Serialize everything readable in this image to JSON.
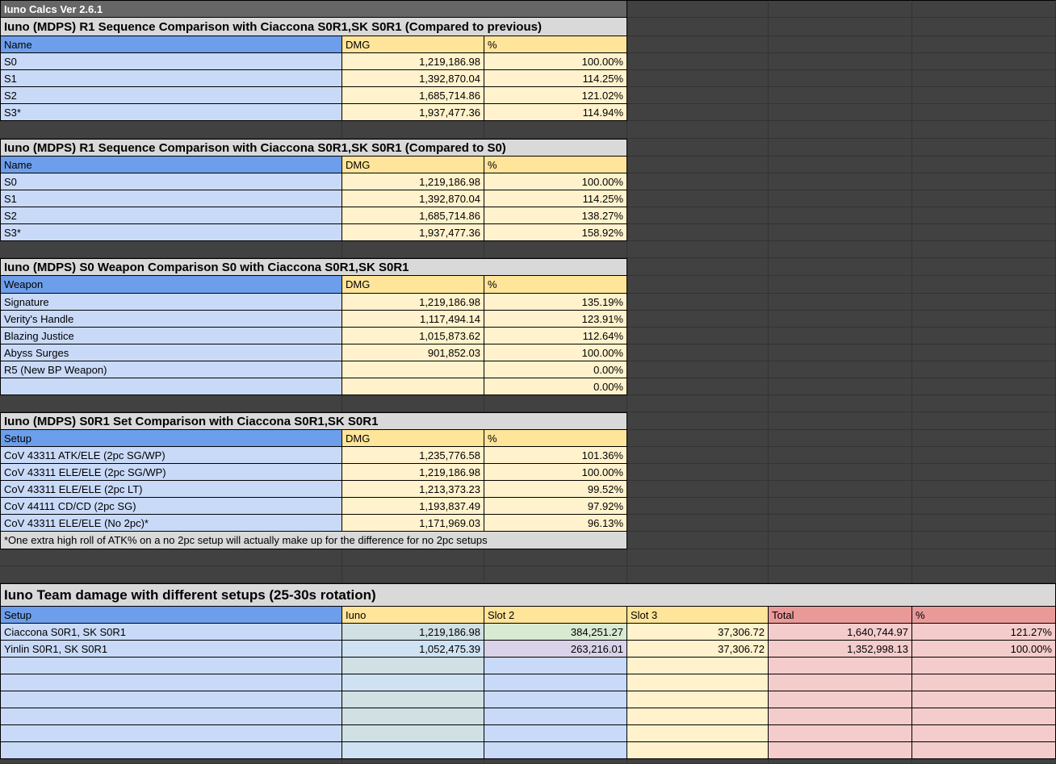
{
  "app": {
    "title": "Iuno Calcs Ver 2.6.1"
  },
  "palette": {
    "background_dark": "#414141",
    "grid_line_dark": "#333333",
    "top_bar_gray": "#666666",
    "section_title_gray": "#D9D9D9",
    "header_blue": "#6D9EEB",
    "row_blue": "#C9DAF8",
    "header_tan": "#FFE599",
    "cell_cream": "#FFF2CC",
    "header_pink": "#EA9999",
    "cell_pink": "#F4CCCC",
    "cell_teal": "#D0E0E3",
    "cell_light_blue": "#CFE2F3",
    "cell_green": "#D9EAD3",
    "cell_purple": "#D9D2E9"
  },
  "tables": [
    {
      "title": "Iuno (MDPS) R1 Sequence Comparison with Ciaccona S0R1,SK S0R1 (Compared to previous)",
      "columns": [
        "Name",
        "DMG",
        "%"
      ],
      "rows": [
        {
          "name": "S0",
          "dmg": "1,219,186.98",
          "pct": "100.00%"
        },
        {
          "name": "S1",
          "dmg": "1,392,870.04",
          "pct": "114.25%"
        },
        {
          "name": "S2",
          "dmg": "1,685,714.86",
          "pct": "121.02%"
        },
        {
          "name": "S3*",
          "dmg": "1,937,477.36",
          "pct": "114.94%"
        }
      ]
    },
    {
      "title": "Iuno (MDPS) R1 Sequence Comparison with Ciaccona S0R1,SK S0R1 (Compared to S0)",
      "columns": [
        "Name",
        "DMG",
        "%"
      ],
      "rows": [
        {
          "name": "S0",
          "dmg": "1,219,186.98",
          "pct": "100.00%"
        },
        {
          "name": "S1",
          "dmg": "1,392,870.04",
          "pct": "114.25%"
        },
        {
          "name": "S2",
          "dmg": "1,685,714.86",
          "pct": "138.27%"
        },
        {
          "name": "S3*",
          "dmg": "1,937,477.36",
          "pct": "158.92%"
        }
      ]
    },
    {
      "title": "Iuno (MDPS) S0 Weapon Comparison S0 with Ciaccona S0R1,SK S0R1",
      "columns": [
        "Weapon",
        "DMG",
        "%"
      ],
      "rows": [
        {
          "name": "Signature",
          "dmg": "1,219,186.98",
          "pct": "135.19%"
        },
        {
          "name": "Verity's Handle",
          "dmg": "1,117,494.14",
          "pct": "123.91%"
        },
        {
          "name": "Blazing Justice",
          "dmg": "1,015,873.62",
          "pct": "112.64%"
        },
        {
          "name": "Abyss Surges",
          "dmg": "901,852.03",
          "pct": "100.00%"
        },
        {
          "name": "R5 (New BP Weapon)",
          "dmg": "",
          "pct": "0.00%"
        },
        {
          "name": "",
          "dmg": "",
          "pct": "0.00%"
        }
      ]
    },
    {
      "title": "Iuno (MDPS) S0R1 Set Comparison with Ciaccona S0R1,SK S0R1",
      "columns": [
        "Setup",
        "DMG",
        "%"
      ],
      "rows": [
        {
          "name": "CoV 43311 ATK/ELE (2pc SG/WP)",
          "dmg": "1,235,776.58",
          "pct": "101.36%"
        },
        {
          "name": "CoV 43311 ELE/ELE (2pc SG/WP)",
          "dmg": "1,219,186.98",
          "pct": "100.00%"
        },
        {
          "name": "CoV 43311 ELE/ELE (2pc LT)",
          "dmg": "1,213,373.23",
          "pct": "99.52%"
        },
        {
          "name": "CoV 44111 CD/CD (2pc SG)",
          "dmg": "1,193,837.49",
          "pct": "97.92%"
        },
        {
          "name": "CoV 43311 ELE/ELE (No 2pc)*",
          "dmg": "1,171,969.03",
          "pct": "96.13%"
        }
      ],
      "footnote": "*One extra high roll of ATK% on a no 2pc setup will actually make up for the difference for no 2pc setups"
    }
  ],
  "team": {
    "title": "Iuno Team damage with different setups (25-30s rotation)",
    "columns": [
      "Setup",
      "Iuno",
      "Slot 2",
      "Slot 3",
      "Total",
      "%"
    ],
    "rows": [
      {
        "setup": "Ciaccona S0R1, SK S0R1",
        "iuno": "1,219,186.98",
        "slot2": "384,251.27",
        "slot3": "37,306.72",
        "total": "1,640,744.97",
        "pct": "121.27%"
      },
      {
        "setup": "Yinlin S0R1, SK S0R1",
        "iuno": "1,052,475.39",
        "slot2": "263,216.01",
        "slot3": "37,306.72",
        "total": "1,352,998.13",
        "pct": "100.00%"
      }
    ],
    "empty_row_count": 6
  }
}
